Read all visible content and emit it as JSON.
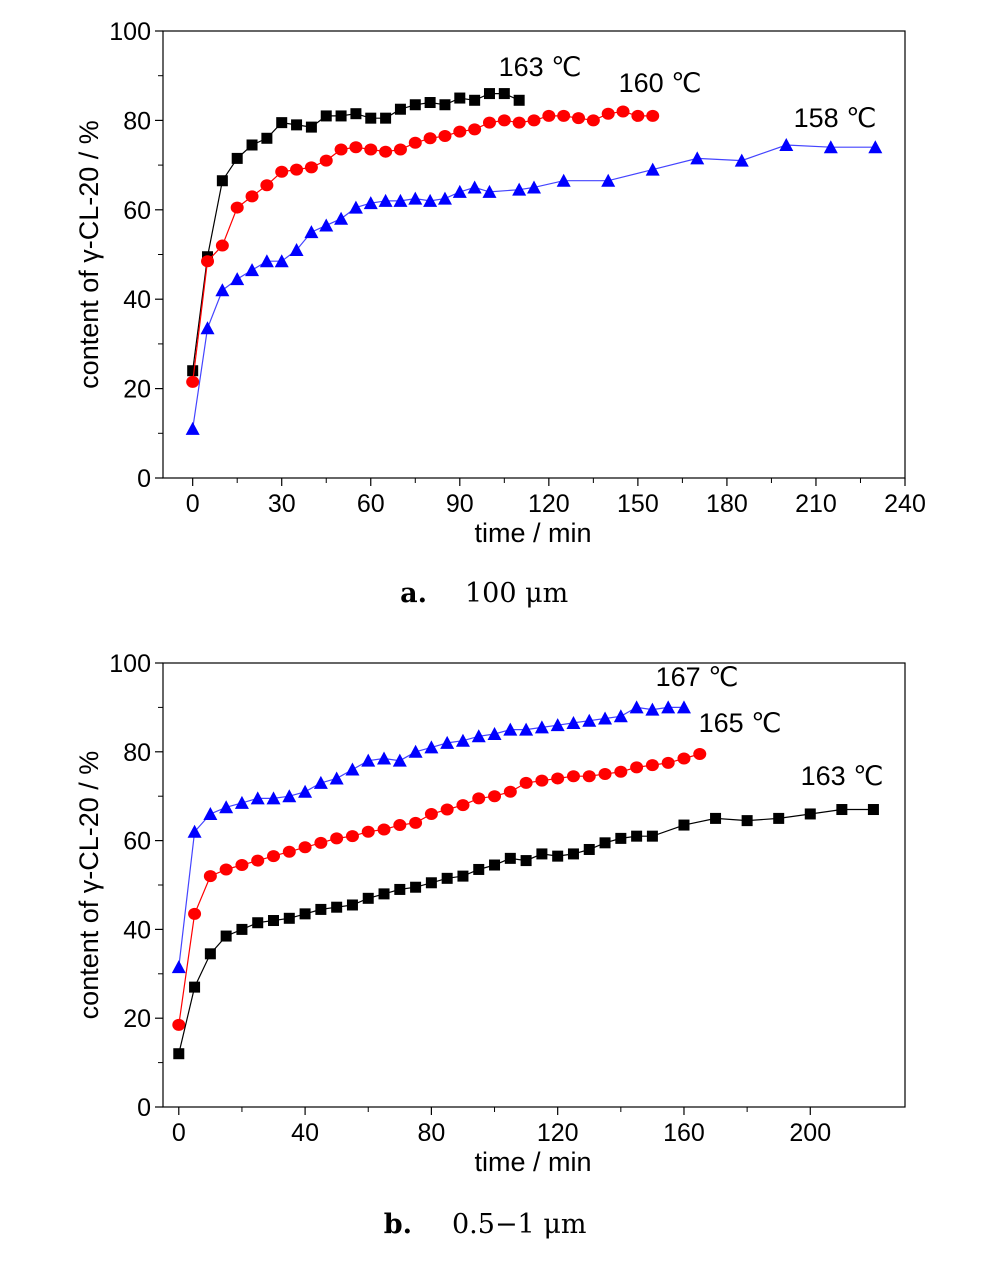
{
  "chart_data": [
    {
      "type": "line",
      "caption_letter": "a.",
      "caption_text": "100 μm",
      "xlabel": "time / min",
      "ylabel": "content of γ-CL-20 / %",
      "xlim": [
        -10,
        240
      ],
      "ylim": [
        0,
        100
      ],
      "xticks": [
        "0",
        "30",
        "60",
        "90",
        "120",
        "150",
        "180",
        "210",
        "240"
      ],
      "xtick_values": [
        0,
        30,
        60,
        90,
        120,
        150,
        180,
        210,
        240
      ],
      "yticks": [
        "0",
        "20",
        "40",
        "60",
        "80",
        "100"
      ],
      "ytick_values": [
        0,
        20,
        40,
        60,
        80,
        100
      ],
      "series": [
        {
          "name": "163 ℃",
          "marker": "square",
          "color": "#000000",
          "line_color": "#000000",
          "x": [
            0,
            5,
            10,
            15,
            20,
            25,
            30,
            35,
            40,
            45,
            50,
            55,
            60,
            65,
            70,
            75,
            80,
            85,
            90,
            95,
            100,
            105,
            110
          ],
          "y": [
            24,
            49.5,
            66.5,
            71.5,
            74.5,
            76,
            79.5,
            79,
            78.5,
            81,
            81,
            81.5,
            80.5,
            80.5,
            82.5,
            83.5,
            84,
            83.5,
            85,
            84.5,
            86,
            86,
            84.5
          ]
        },
        {
          "name": "160 ℃",
          "marker": "circle",
          "color": "#ff0000",
          "line_color": "#ff0000",
          "x": [
            0,
            5,
            10,
            15,
            20,
            25,
            30,
            35,
            40,
            45,
            50,
            55,
            60,
            65,
            70,
            75,
            80,
            85,
            90,
            95,
            100,
            105,
            110,
            115,
            120,
            125,
            130,
            135,
            140,
            145,
            150,
            155
          ],
          "y": [
            21.5,
            48.5,
            52,
            60.5,
            63,
            65.5,
            68.5,
            69,
            69.5,
            71,
            73.5,
            74,
            73.5,
            73,
            73.5,
            75,
            76,
            76.5,
            77.5,
            78,
            79.5,
            80,
            79.5,
            80,
            81,
            81,
            80.5,
            80,
            81.5,
            82,
            81,
            81
          ]
        },
        {
          "name": "158 ℃",
          "marker": "triangle",
          "color": "#0000ff",
          "line_color": "#4444ff",
          "x": [
            0,
            5,
            10,
            15,
            20,
            25,
            30,
            35,
            40,
            45,
            50,
            55,
            60,
            65,
            70,
            75,
            80,
            85,
            90,
            95,
            100,
            110,
            115,
            125,
            140,
            155,
            170,
            185,
            200,
            215,
            230
          ],
          "y": [
            11,
            33.5,
            42,
            44.5,
            46.5,
            48.5,
            48.5,
            51,
            55,
            56.5,
            58,
            60.5,
            61.5,
            62,
            62,
            62.5,
            62,
            62.5,
            64,
            65,
            64,
            64.5,
            65,
            66.5,
            66.5,
            69,
            71.5,
            71,
            74.5,
            74,
            74
          ]
        }
      ]
    },
    {
      "type": "line",
      "caption_letter": "b.",
      "caption_text": "0.5−1 μm",
      "xlabel": "time / min",
      "ylabel": "content of γ-CL-20 / %",
      "xlim": [
        -5,
        230
      ],
      "ylim": [
        0,
        100
      ],
      "xticks": [
        "0",
        "40",
        "80",
        "120",
        "160",
        "200"
      ],
      "xtick_values": [
        0,
        40,
        80,
        120,
        160,
        200
      ],
      "yticks": [
        "0",
        "20",
        "40",
        "60",
        "80",
        "100"
      ],
      "ytick_values": [
        0,
        20,
        40,
        60,
        80,
        100
      ],
      "series": [
        {
          "name": "167 ℃",
          "marker": "triangle",
          "color": "#0000ff",
          "line_color": "#4444ff",
          "x": [
            0,
            5,
            10,
            15,
            20,
            25,
            30,
            35,
            40,
            45,
            50,
            55,
            60,
            65,
            70,
            75,
            80,
            85,
            90,
            95,
            100,
            105,
            110,
            115,
            120,
            125,
            130,
            135,
            140,
            145,
            150,
            155,
            160
          ],
          "y": [
            31.5,
            62,
            66,
            67.5,
            68.5,
            69.5,
            69.5,
            70,
            71,
            73,
            74,
            76,
            78,
            78.5,
            78,
            80,
            81,
            82,
            82.5,
            83.5,
            84,
            85,
            85,
            85.5,
            86,
            86.5,
            87,
            87.5,
            88,
            90,
            89.5,
            90,
            90
          ]
        },
        {
          "name": "165 ℃",
          "marker": "circle",
          "color": "#ff0000",
          "line_color": "#ff0000",
          "x": [
            0,
            5,
            10,
            15,
            20,
            25,
            30,
            35,
            40,
            45,
            50,
            55,
            60,
            65,
            70,
            75,
            80,
            85,
            90,
            95,
            100,
            105,
            110,
            115,
            120,
            125,
            130,
            135,
            140,
            145,
            150,
            155,
            160,
            165
          ],
          "y": [
            18.5,
            43.5,
            52,
            53.5,
            54.5,
            55.5,
            56.5,
            57.5,
            58.5,
            59.5,
            60.5,
            61,
            62,
            62.5,
            63.5,
            64,
            66,
            67,
            68,
            69.5,
            70,
            71,
            73,
            73.5,
            74,
            74.5,
            74.5,
            75,
            75.5,
            76.5,
            77,
            77.5,
            78.5,
            79.5
          ]
        },
        {
          "name": "163 ℃",
          "marker": "square",
          "color": "#000000",
          "line_color": "#000000",
          "x": [
            0,
            5,
            10,
            15,
            20,
            25,
            30,
            35,
            40,
            45,
            50,
            55,
            60,
            65,
            70,
            75,
            80,
            85,
            90,
            95,
            100,
            105,
            110,
            115,
            120,
            125,
            130,
            135,
            140,
            145,
            150,
            160,
            170,
            180,
            190,
            200,
            210,
            220
          ],
          "y": [
            12,
            27,
            34.5,
            38.5,
            40,
            41.5,
            42,
            42.5,
            43.5,
            44.5,
            45,
            45.5,
            47,
            48,
            49,
            49.5,
            50.5,
            51.5,
            52,
            53.5,
            54.5,
            56,
            55.5,
            57,
            56.5,
            57,
            58,
            59.5,
            60.5,
            61,
            61,
            63.5,
            65,
            64.5,
            65,
            66,
            67,
            67
          ]
        }
      ]
    }
  ]
}
